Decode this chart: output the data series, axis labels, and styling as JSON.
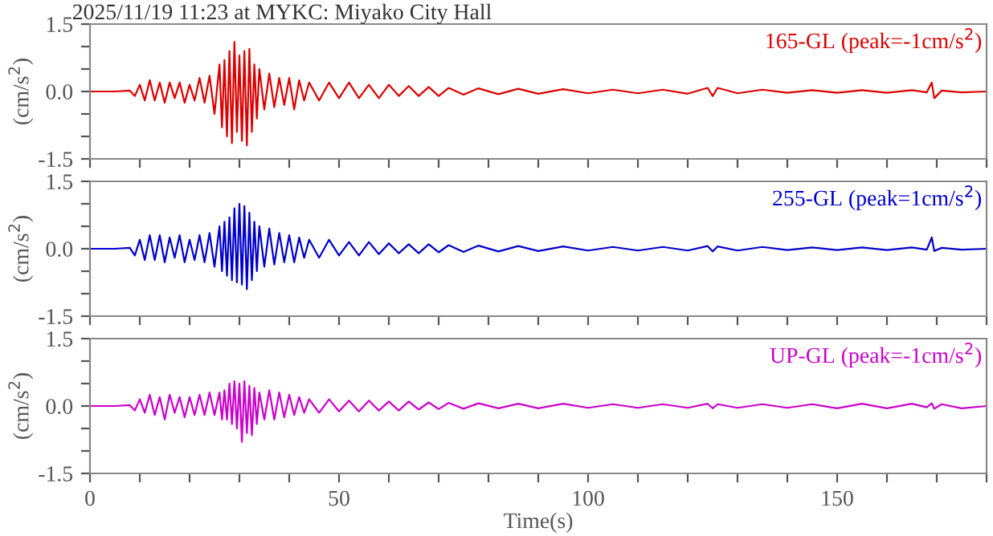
{
  "chart_data": [
    {
      "type": "line",
      "title": "2025/11/19 11:23 at MYKC: Miyako City Hall",
      "ylabel": "(cm/s$^{2}$)",
      "xlim": [
        0,
        180
      ],
      "ylim": [
        -1.5,
        1.5
      ],
      "tick_labels": "y",
      "xticks": [
        {
          "value": 0,
          "label": null
        },
        {
          "value": 10,
          "label": null
        },
        {
          "value": 20,
          "label": null
        },
        {
          "value": 30,
          "label": null
        },
        {
          "value": 40,
          "label": null
        },
        {
          "value": 50,
          "label": null
        },
        {
          "value": 60,
          "label": null
        },
        {
          "value": 70,
          "label": null
        },
        {
          "value": 80,
          "label": null
        },
        {
          "value": 90,
          "label": null
        },
        {
          "value": 100,
          "label": null
        },
        {
          "value": 110,
          "label": null
        },
        {
          "value": 120,
          "label": null
        },
        {
          "value": 130,
          "label": null
        },
        {
          "value": 140,
          "label": null
        },
        {
          "value": 150,
          "label": null
        },
        {
          "value": 160,
          "label": null
        },
        {
          "value": 170,
          "label": null
        },
        {
          "value": 180,
          "label": null
        }
      ],
      "yticks": [
        {
          "value": -1.5,
          "label": "-1.5"
        },
        {
          "value": -1.0,
          "label": null
        },
        {
          "value": -0.5,
          "label": null
        },
        {
          "value": 0,
          "label": "0.0"
        },
        {
          "value": 0.5,
          "label": null
        },
        {
          "value": 1.0,
          "label": null
        },
        {
          "value": 1.5,
          "label": "1.5"
        }
      ],
      "legend": false,
      "series": [
        {
          "name": "165-GL (peak=-1cm/s$^{2}$)",
          "color": "#dd0000",
          "x": [
            0,
            5,
            8,
            9,
            10,
            11,
            12,
            13,
            14,
            15,
            16,
            17,
            18,
            19,
            20,
            21,
            22,
            23,
            24,
            25,
            26,
            26.5,
            27,
            27.5,
            28,
            28.5,
            29,
            29.5,
            30,
            30.5,
            31,
            31.5,
            32,
            32.5,
            33,
            33.5,
            34,
            35,
            36,
            37,
            38,
            39,
            40,
            41,
            42,
            43,
            44,
            46,
            48,
            50,
            52,
            54,
            56,
            58,
            60,
            62,
            64,
            66,
            68,
            70,
            72,
            75,
            78,
            82,
            86,
            90,
            95,
            100,
            105,
            110,
            115,
            120,
            124,
            125,
            126,
            130,
            135,
            140,
            145,
            150,
            155,
            160,
            165,
            168,
            169,
            169.5,
            171,
            175,
            180
          ],
          "values": [
            0,
            0,
            0.02,
            -0.1,
            0.15,
            -0.2,
            0.25,
            -0.2,
            0.2,
            -0.25,
            0.2,
            -0.15,
            0.2,
            -0.25,
            0.15,
            -0.2,
            0.3,
            -0.25,
            0.35,
            -0.5,
            0.6,
            -0.8,
            0.7,
            -1.0,
            0.9,
            -1.15,
            1.1,
            -0.9,
            0.8,
            -1.1,
            0.9,
            -1.2,
            0.95,
            -0.9,
            0.6,
            -0.6,
            0.5,
            -0.4,
            0.4,
            -0.35,
            0.3,
            -0.3,
            0.3,
            -0.4,
            0.25,
            -0.2,
            0.2,
            -0.2,
            0.2,
            -0.15,
            0.2,
            -0.15,
            0.15,
            -0.15,
            0.15,
            -0.1,
            0.12,
            -0.1,
            0.1,
            -0.1,
            0.08,
            -0.07,
            0.07,
            -0.06,
            0.06,
            -0.05,
            0.05,
            -0.04,
            0.04,
            -0.04,
            0.04,
            -0.05,
            0.08,
            -0.1,
            0.08,
            -0.04,
            0.04,
            -0.03,
            0.03,
            -0.03,
            0.03,
            -0.03,
            0.03,
            -0.02,
            0.2,
            -0.15,
            0.02,
            -0.02,
            0
          ]
        }
      ]
    },
    {
      "type": "line",
      "ylabel": "(cm/s$^{2}$)",
      "xlim": [
        0,
        180
      ],
      "ylim": [
        -1.5,
        1.5
      ],
      "tick_labels": "y",
      "xticks": [
        {
          "value": 0,
          "label": null
        },
        {
          "value": 10,
          "label": null
        },
        {
          "value": 20,
          "label": null
        },
        {
          "value": 30,
          "label": null
        },
        {
          "value": 40,
          "label": null
        },
        {
          "value": 50,
          "label": null
        },
        {
          "value": 60,
          "label": null
        },
        {
          "value": 70,
          "label": null
        },
        {
          "value": 80,
          "label": null
        },
        {
          "value": 90,
          "label": null
        },
        {
          "value": 100,
          "label": null
        },
        {
          "value": 110,
          "label": null
        },
        {
          "value": 120,
          "label": null
        },
        {
          "value": 130,
          "label": null
        },
        {
          "value": 140,
          "label": null
        },
        {
          "value": 150,
          "label": null
        },
        {
          "value": 160,
          "label": null
        },
        {
          "value": 170,
          "label": null
        },
        {
          "value": 180,
          "label": null
        }
      ],
      "yticks": [
        {
          "value": -1.5,
          "label": "-1.5"
        },
        {
          "value": -1.0,
          "label": null
        },
        {
          "value": -0.5,
          "label": null
        },
        {
          "value": 0,
          "label": "0.0"
        },
        {
          "value": 0.5,
          "label": null
        },
        {
          "value": 1.0,
          "label": null
        },
        {
          "value": 1.5,
          "label": "1.5"
        }
      ],
      "legend": false,
      "series": [
        {
          "name": "255-GL (peak=1cm/s$^{2}$)",
          "color": "#0000cc",
          "x": [
            0,
            5,
            8,
            9,
            10,
            11,
            12,
            13,
            14,
            15,
            16,
            17,
            18,
            19,
            20,
            21,
            22,
            23,
            24,
            25,
            26,
            26.5,
            27,
            27.5,
            28,
            28.5,
            29,
            29.5,
            30,
            30.5,
            31,
            31.5,
            32,
            32.5,
            33,
            33.5,
            34,
            35,
            36,
            37,
            38,
            39,
            40,
            41,
            42,
            43,
            44,
            46,
            48,
            50,
            52,
            54,
            56,
            58,
            60,
            62,
            64,
            66,
            68,
            70,
            72,
            75,
            78,
            82,
            86,
            90,
            95,
            100,
            105,
            110,
            115,
            120,
            124,
            125,
            126,
            130,
            135,
            140,
            145,
            150,
            155,
            160,
            165,
            168,
            169,
            169.5,
            171,
            175,
            180
          ],
          "values": [
            0,
            0,
            0.02,
            -0.15,
            0.2,
            -0.25,
            0.3,
            -0.25,
            0.3,
            -0.3,
            0.25,
            -0.2,
            0.3,
            -0.3,
            0.2,
            -0.25,
            0.3,
            -0.3,
            0.35,
            -0.4,
            0.5,
            -0.5,
            0.6,
            -0.6,
            0.7,
            -0.7,
            0.9,
            -0.75,
            1.0,
            -0.8,
            0.95,
            -0.9,
            0.8,
            -0.7,
            0.6,
            -0.5,
            0.5,
            -0.4,
            0.45,
            -0.35,
            0.35,
            -0.3,
            0.3,
            -0.3,
            0.25,
            -0.2,
            0.2,
            -0.2,
            0.2,
            -0.15,
            0.15,
            -0.15,
            0.15,
            -0.12,
            0.12,
            -0.1,
            0.1,
            -0.1,
            0.1,
            -0.08,
            0.08,
            -0.07,
            0.07,
            -0.06,
            0.06,
            -0.05,
            0.05,
            -0.04,
            0.04,
            -0.04,
            0.04,
            -0.04,
            0.06,
            -0.06,
            0.05,
            -0.04,
            0.04,
            -0.03,
            0.03,
            -0.03,
            0.03,
            -0.03,
            0.03,
            -0.02,
            0.25,
            -0.05,
            0.02,
            -0.02,
            0
          ]
        }
      ]
    },
    {
      "type": "line",
      "ylabel": "(cm/s$^{2}$)",
      "xlabel": "Time(s)",
      "xlim": [
        0,
        180
      ],
      "ylim": [
        -1.5,
        1.5
      ],
      "xticks": [
        {
          "value": 0,
          "label": "0"
        },
        {
          "value": 10,
          "label": null
        },
        {
          "value": 20,
          "label": null
        },
        {
          "value": 30,
          "label": null
        },
        {
          "value": 40,
          "label": null
        },
        {
          "value": 50,
          "label": "50"
        },
        {
          "value": 60,
          "label": null
        },
        {
          "value": 70,
          "label": null
        },
        {
          "value": 80,
          "label": null
        },
        {
          "value": 90,
          "label": null
        },
        {
          "value": 100,
          "label": "100"
        },
        {
          "value": 110,
          "label": null
        },
        {
          "value": 120,
          "label": null
        },
        {
          "value": 130,
          "label": null
        },
        {
          "value": 140,
          "label": null
        },
        {
          "value": 150,
          "label": "150"
        },
        {
          "value": 160,
          "label": null
        },
        {
          "value": 170,
          "label": null
        },
        {
          "value": 180,
          "label": null
        }
      ],
      "yticks": [
        {
          "value": -1.5,
          "label": "-1.5"
        },
        {
          "value": -1.0,
          "label": null
        },
        {
          "value": -0.5,
          "label": null
        },
        {
          "value": 0,
          "label": "0.0"
        },
        {
          "value": 0.5,
          "label": null
        },
        {
          "value": 1.0,
          "label": null
        },
        {
          "value": 1.5,
          "label": "1.5"
        }
      ],
      "legend": false,
      "series": [
        {
          "name": "UP-GL (peak=-1cm/s$^{2}$)",
          "color": "#cc00cc",
          "x": [
            0,
            5,
            8,
            9,
            10,
            11,
            12,
            13,
            14,
            15,
            16,
            17,
            18,
            19,
            20,
            21,
            22,
            23,
            24,
            25,
            26,
            26.5,
            27,
            27.5,
            28,
            28.5,
            29,
            29.5,
            30,
            30.5,
            31,
            31.5,
            32,
            32.5,
            33,
            33.5,
            34,
            35,
            36,
            37,
            38,
            39,
            40,
            41,
            42,
            43,
            44,
            46,
            48,
            50,
            52,
            54,
            56,
            58,
            60,
            62,
            64,
            66,
            68,
            70,
            72,
            75,
            78,
            82,
            86,
            90,
            95,
            100,
            105,
            110,
            115,
            120,
            124,
            125,
            126,
            130,
            135,
            140,
            145,
            150,
            155,
            160,
            165,
            168,
            169,
            169.5,
            171,
            175,
            180
          ],
          "values": [
            0,
            0,
            0.02,
            -0.1,
            0.15,
            -0.15,
            0.25,
            -0.2,
            0.2,
            -0.3,
            0.25,
            -0.15,
            0.2,
            -0.25,
            0.2,
            -0.2,
            0.25,
            -0.2,
            0.3,
            -0.2,
            0.3,
            -0.3,
            0.35,
            -0.3,
            0.5,
            -0.4,
            0.55,
            -0.5,
            0.5,
            -0.8,
            0.55,
            -0.6,
            0.45,
            -0.65,
            0.4,
            -0.4,
            0.3,
            -0.3,
            0.35,
            -0.3,
            0.3,
            -0.25,
            0.25,
            -0.2,
            0.2,
            -0.15,
            0.15,
            -0.15,
            0.15,
            -0.12,
            0.12,
            -0.12,
            0.12,
            -0.1,
            0.1,
            -0.1,
            0.1,
            -0.08,
            0.08,
            -0.07,
            0.07,
            -0.06,
            0.06,
            -0.05,
            0.05,
            -0.05,
            0.05,
            -0.04,
            0.04,
            -0.04,
            0.04,
            -0.04,
            0.05,
            -0.05,
            0.04,
            -0.04,
            0.04,
            -0.04,
            0.04,
            -0.05,
            0.05,
            -0.05,
            0.05,
            -0.03,
            0.06,
            -0.06,
            0.04,
            -0.05,
            0
          ]
        }
      ]
    }
  ]
}
